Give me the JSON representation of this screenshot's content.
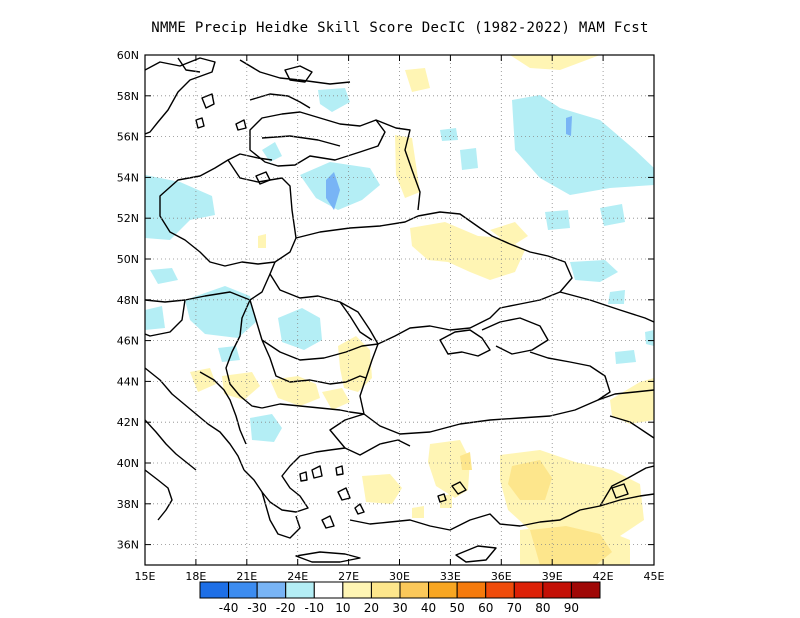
{
  "title": "NMME Precip Heidke Skill Score DecIC (1982-2022) MAM Fcst",
  "map": {
    "lon_range": [
      15,
      45
    ],
    "lat_range": [
      35,
      60
    ],
    "grid": true,
    "lat_labels": [
      "60N",
      "58N",
      "56N",
      "54N",
      "52N",
      "50N",
      "48N",
      "46N",
      "44N",
      "42N",
      "40N",
      "38N",
      "36N"
    ],
    "lon_labels": [
      "15E",
      "18E",
      "21E",
      "24E",
      "27E",
      "30E",
      "33E",
      "36E",
      "39E",
      "42E",
      "45E"
    ]
  },
  "colorbar": {
    "colors": [
      "#1e6fe6",
      "#3c8cf0",
      "#78b4f5",
      "#b4eef5",
      "#ffffff",
      "#fff5b4",
      "#fde68c",
      "#fbc85a",
      "#f8a622",
      "#f57a0c",
      "#ef4b0a",
      "#dc2006",
      "#c30f05",
      "#9f0806"
    ],
    "labels": [
      "-40",
      "-30",
      "-20",
      "-10",
      "10",
      "20",
      "30",
      "40",
      "50",
      "60",
      "70",
      "80",
      "90"
    ]
  },
  "legend": {
    "negative_fill": "#b4eef5",
    "negative_strong_fill": "#78b4f5",
    "positive_fill": "#fff5b4",
    "positive_strong_fill": "#fde68c"
  }
}
